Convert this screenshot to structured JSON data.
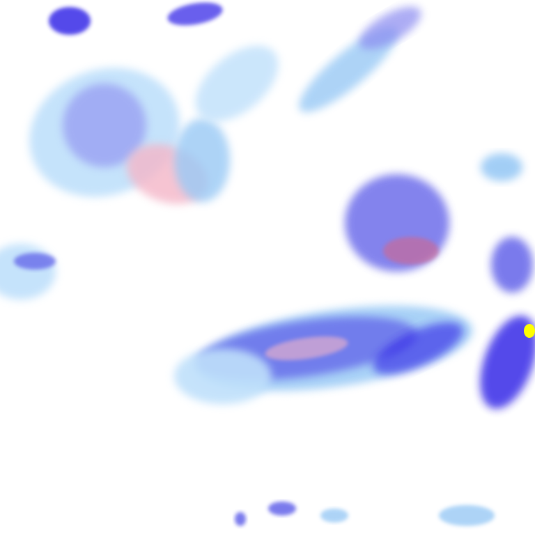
{
  "map": {
    "layer": "precipitation-radar",
    "legend_colors": {
      "light": "#bfe0fb",
      "light_medium": "#99c9f5",
      "medium": "#8a8af0",
      "heavy": "#5a5ae8",
      "very_heavy": "#2a1ee6",
      "mixed": "#f4b6c8",
      "mixed_heavy": "#c76a9a",
      "extreme": "#ffff00"
    }
  }
}
